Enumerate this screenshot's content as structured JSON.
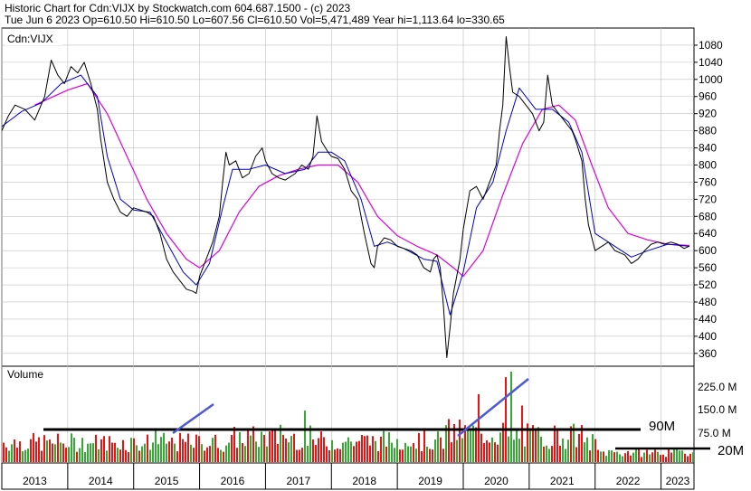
{
  "header": {
    "line1": "Historic Chart for Cdn:VIJX by Stockwatch.com 604.687.1500 - (c) 2023",
    "line2": "Tue Jun  6 2023   Op=610.50   Hi=610.50   Lo=607.56   Cl=610.50   Vol=5,471,489   Year hi=1,113.64   lo=330.65"
  },
  "colors": {
    "price": "#000000",
    "ma_short": "#0000cc",
    "ma_long": "#dd00dd",
    "vol_up": "#33aa33",
    "vol_down": "#ee1111",
    "trend": "#4a5ad8",
    "grid": "#c0c0c0"
  },
  "chart_data": [
    {
      "type": "line",
      "panel_label": "Cdn:VIJX",
      "ylim": [
        330,
        1120
      ],
      "y_ticks": [
        360,
        400,
        440,
        480,
        520,
        560,
        600,
        640,
        680,
        720,
        760,
        800,
        840,
        880,
        920,
        960,
        1000,
        1040,
        1080
      ],
      "x_ticks": [
        "2013",
        "2014",
        "2015",
        "2016",
        "2017",
        "2018",
        "2019",
        "2020",
        "2021",
        "2022",
        "2023"
      ],
      "series": [
        {
          "values": [
            [
              2013.0,
              880
            ],
            [
              2013.1,
              915
            ],
            [
              2013.2,
              940
            ],
            [
              2013.35,
              930
            ],
            [
              2013.5,
              905
            ],
            [
              2013.65,
              960
            ],
            [
              2013.75,
              1045
            ],
            [
              2013.85,
              1010
            ],
            [
              2013.95,
              990
            ],
            [
              2014.05,
              1030
            ],
            [
              2014.15,
              1015
            ],
            [
              2014.25,
              1040
            ],
            [
              2014.35,
              990
            ],
            [
              2014.45,
              930
            ],
            [
              2014.5,
              860
            ],
            [
              2014.6,
              760
            ],
            [
              2014.7,
              720
            ],
            [
              2014.8,
              690
            ],
            [
              2014.9,
              680
            ],
            [
              2015.0,
              700
            ],
            [
              2015.1,
              695
            ],
            [
              2015.2,
              690
            ],
            [
              2015.3,
              680
            ],
            [
              2015.4,
              640
            ],
            [
              2015.5,
              580
            ],
            [
              2015.6,
              550
            ],
            [
              2015.7,
              530
            ],
            [
              2015.8,
              510
            ],
            [
              2015.9,
              505
            ],
            [
              2015.95,
              500
            ],
            [
              2016.0,
              540
            ],
            [
              2016.1,
              580
            ],
            [
              2016.2,
              620
            ],
            [
              2016.3,
              680
            ],
            [
              2016.35,
              760
            ],
            [
              2016.4,
              830
            ],
            [
              2016.45,
              800
            ],
            [
              2016.55,
              810
            ],
            [
              2016.65,
              770
            ],
            [
              2016.75,
              780
            ],
            [
              2016.85,
              820
            ],
            [
              2016.95,
              840
            ],
            [
              2017.0,
              810
            ],
            [
              2017.1,
              780
            ],
            [
              2017.2,
              770
            ],
            [
              2017.3,
              765
            ],
            [
              2017.45,
              780
            ],
            [
              2017.55,
              800
            ],
            [
              2017.65,
              790
            ],
            [
              2017.72,
              820
            ],
            [
              2017.78,
              915
            ],
            [
              2017.85,
              855
            ],
            [
              2017.95,
              830
            ],
            [
              2018.0,
              820
            ],
            [
              2018.1,
              815
            ],
            [
              2018.2,
              790
            ],
            [
              2018.3,
              740
            ],
            [
              2018.4,
              720
            ],
            [
              2018.5,
              640
            ],
            [
              2018.6,
              570
            ],
            [
              2018.65,
              560
            ],
            [
              2018.7,
              610
            ],
            [
              2018.8,
              630
            ],
            [
              2018.9,
              625
            ],
            [
              2019.0,
              610
            ],
            [
              2019.1,
              605
            ],
            [
              2019.2,
              600
            ],
            [
              2019.3,
              590
            ],
            [
              2019.4,
              560
            ],
            [
              2019.5,
              550
            ],
            [
              2019.55,
              580
            ],
            [
              2019.6,
              590
            ],
            [
              2019.65,
              560
            ],
            [
              2019.7,
              470
            ],
            [
              2019.75,
              350
            ],
            [
              2019.8,
              420
            ],
            [
              2019.85,
              500
            ],
            [
              2019.95,
              580
            ],
            [
              2020.0,
              650
            ],
            [
              2020.1,
              740
            ],
            [
              2020.2,
              750
            ],
            [
              2020.3,
              720
            ],
            [
              2020.4,
              760
            ],
            [
              2020.5,
              800
            ],
            [
              2020.55,
              880
            ],
            [
              2020.6,
              940
            ],
            [
              2020.65,
              1100
            ],
            [
              2020.7,
              1030
            ],
            [
              2020.75,
              970
            ],
            [
              2020.85,
              960
            ],
            [
              2020.95,
              940
            ],
            [
              2021.05,
              920
            ],
            [
              2021.15,
              880
            ],
            [
              2021.22,
              900
            ],
            [
              2021.28,
              1010
            ],
            [
              2021.35,
              940
            ],
            [
              2021.45,
              920
            ],
            [
              2021.55,
              900
            ],
            [
              2021.65,
              880
            ],
            [
              2021.7,
              860
            ],
            [
              2021.8,
              810
            ],
            [
              2021.85,
              720
            ],
            [
              2021.9,
              660
            ],
            [
              2021.95,
              630
            ],
            [
              2022.0,
              600
            ],
            [
              2022.1,
              610
            ],
            [
              2022.2,
              620
            ],
            [
              2022.3,
              600
            ],
            [
              2022.45,
              590
            ],
            [
              2022.55,
              570
            ],
            [
              2022.65,
              580
            ],
            [
              2022.75,
              600
            ],
            [
              2022.85,
              615
            ],
            [
              2022.95,
              620
            ],
            [
              2023.05,
              615
            ],
            [
              2023.15,
              620
            ],
            [
              2023.25,
              615
            ],
            [
              2023.35,
              605
            ],
            [
              2023.43,
              610.5
            ]
          ]
        },
        {
          "values": [
            [
              2013.0,
              890
            ],
            [
              2013.3,
              925
            ],
            [
              2013.6,
              945
            ],
            [
              2013.9,
              990
            ],
            [
              2014.2,
              1010
            ],
            [
              2014.45,
              960
            ],
            [
              2014.6,
              820
            ],
            [
              2014.8,
              720
            ],
            [
              2015.0,
              695
            ],
            [
              2015.25,
              690
            ],
            [
              2015.5,
              620
            ],
            [
              2015.75,
              550
            ],
            [
              2015.95,
              520
            ],
            [
              2016.15,
              570
            ],
            [
              2016.35,
              700
            ],
            [
              2016.5,
              790
            ],
            [
              2016.75,
              790
            ],
            [
              2017.0,
              800
            ],
            [
              2017.3,
              780
            ],
            [
              2017.6,
              790
            ],
            [
              2017.8,
              830
            ],
            [
              2018.0,
              830
            ],
            [
              2018.2,
              810
            ],
            [
              2018.45,
              720
            ],
            [
              2018.65,
              610
            ],
            [
              2018.85,
              620
            ],
            [
              2019.1,
              605
            ],
            [
              2019.4,
              580
            ],
            [
              2019.6,
              575
            ],
            [
              2019.8,
              450
            ],
            [
              2020.0,
              550
            ],
            [
              2020.2,
              700
            ],
            [
              2020.45,
              760
            ],
            [
              2020.65,
              880
            ],
            [
              2020.85,
              980
            ],
            [
              2021.1,
              930
            ],
            [
              2021.35,
              930
            ],
            [
              2021.6,
              900
            ],
            [
              2021.8,
              830
            ],
            [
              2022.0,
              640
            ],
            [
              2022.3,
              610
            ],
            [
              2022.55,
              585
            ],
            [
              2022.8,
              600
            ],
            [
              2023.1,
              615
            ],
            [
              2023.43,
              610
            ]
          ]
        },
        {
          "values": [
            [
              2013.5,
              940
            ],
            [
              2014.0,
              975
            ],
            [
              2014.3,
              990
            ],
            [
              2014.6,
              920
            ],
            [
              2014.9,
              820
            ],
            [
              2015.2,
              720
            ],
            [
              2015.5,
              640
            ],
            [
              2015.8,
              580
            ],
            [
              2016.0,
              560
            ],
            [
              2016.3,
              600
            ],
            [
              2016.6,
              690
            ],
            [
              2016.9,
              750
            ],
            [
              2017.2,
              775
            ],
            [
              2017.5,
              790
            ],
            [
              2017.8,
              800
            ],
            [
              2018.1,
              800
            ],
            [
              2018.4,
              760
            ],
            [
              2018.7,
              680
            ],
            [
              2019.0,
              635
            ],
            [
              2019.3,
              610
            ],
            [
              2019.6,
              590
            ],
            [
              2019.85,
              560
            ],
            [
              2020.0,
              540
            ],
            [
              2020.3,
              600
            ],
            [
              2020.6,
              730
            ],
            [
              2020.9,
              850
            ],
            [
              2021.2,
              930
            ],
            [
              2021.45,
              940
            ],
            [
              2021.7,
              905
            ],
            [
              2021.95,
              800
            ],
            [
              2022.2,
              700
            ],
            [
              2022.5,
              640
            ],
            [
              2022.8,
              625
            ],
            [
              2023.1,
              615
            ],
            [
              2023.43,
              612
            ]
          ]
        }
      ]
    },
    {
      "type": "bar",
      "panel_label": "Volume",
      "y_ticks": [
        "225.0 M",
        "150.0 M",
        "75.0 M"
      ],
      "annotations": [
        "90M",
        "20M"
      ]
    }
  ]
}
